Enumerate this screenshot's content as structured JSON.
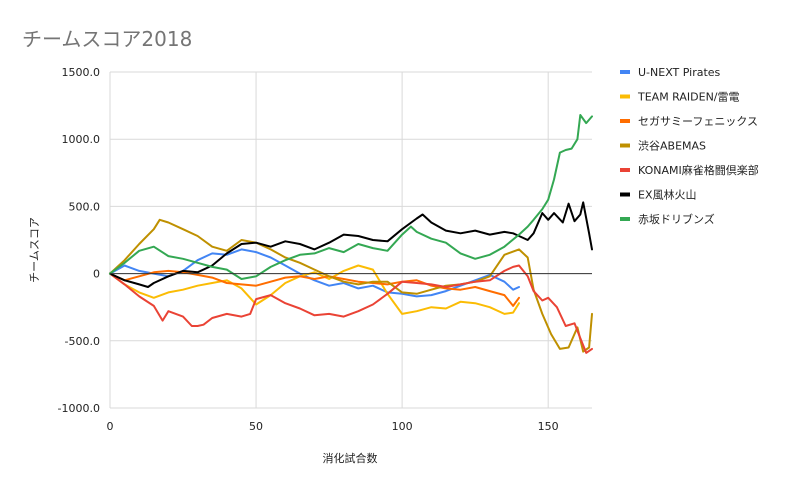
{
  "chart_data": {
    "type": "line",
    "title": "チームスコア2018",
    "xlabel": "消化試合数",
    "ylabel": "チームスコア",
    "xlim": [
      0,
      165
    ],
    "ylim": [
      -1000,
      1500
    ],
    "x_ticks": [
      0,
      50,
      100,
      150
    ],
    "x_tick_labels": [
      "0",
      "50",
      "100",
      "150"
    ],
    "y_ticks": [
      -1000,
      -500,
      0,
      500,
      1000,
      1500
    ],
    "y_tick_labels": [
      "-1000.0",
      "-500.0",
      "0",
      "500.0",
      "1000.0",
      "1500.0"
    ],
    "grid": true,
    "legend_position": "right",
    "series": [
      {
        "name": "U-NEXT Pirates",
        "color": "#4285f4",
        "points": [
          [
            0,
            0
          ],
          [
            5,
            60
          ],
          [
            10,
            20
          ],
          [
            15,
            0
          ],
          [
            20,
            -20
          ],
          [
            25,
            20
          ],
          [
            30,
            100
          ],
          [
            35,
            150
          ],
          [
            40,
            140
          ],
          [
            45,
            180
          ],
          [
            50,
            160
          ],
          [
            55,
            120
          ],
          [
            60,
            60
          ],
          [
            65,
            0
          ],
          [
            70,
            -50
          ],
          [
            75,
            -90
          ],
          [
            80,
            -70
          ],
          [
            85,
            -110
          ],
          [
            90,
            -90
          ],
          [
            95,
            -140
          ],
          [
            100,
            -150
          ],
          [
            105,
            -170
          ],
          [
            110,
            -160
          ],
          [
            115,
            -130
          ],
          [
            120,
            -90
          ],
          [
            125,
            -50
          ],
          [
            130,
            -10
          ],
          [
            135,
            -60
          ],
          [
            138,
            -120
          ],
          [
            140,
            -100
          ]
        ]
      },
      {
        "name": "TEAM RAIDEN/雷電",
        "color": "#fbbc04",
        "points": [
          [
            0,
            0
          ],
          [
            5,
            -80
          ],
          [
            10,
            -140
          ],
          [
            15,
            -180
          ],
          [
            20,
            -140
          ],
          [
            25,
            -120
          ],
          [
            30,
            -90
          ],
          [
            35,
            -70
          ],
          [
            40,
            -50
          ],
          [
            45,
            -110
          ],
          [
            50,
            -230
          ],
          [
            55,
            -160
          ],
          [
            60,
            -70
          ],
          [
            65,
            -20
          ],
          [
            70,
            10
          ],
          [
            75,
            -40
          ],
          [
            80,
            20
          ],
          [
            85,
            60
          ],
          [
            90,
            30
          ],
          [
            95,
            -150
          ],
          [
            100,
            -300
          ],
          [
            105,
            -280
          ],
          [
            110,
            -250
          ],
          [
            115,
            -260
          ],
          [
            120,
            -210
          ],
          [
            125,
            -220
          ],
          [
            130,
            -250
          ],
          [
            135,
            -300
          ],
          [
            138,
            -290
          ],
          [
            140,
            -220
          ]
        ]
      },
      {
        "name": "セガサミーフェニックス",
        "color": "#ff6d00",
        "points": [
          [
            0,
            0
          ],
          [
            5,
            -50
          ],
          [
            10,
            -20
          ],
          [
            15,
            10
          ],
          [
            20,
            20
          ],
          [
            25,
            10
          ],
          [
            30,
            -10
          ],
          [
            35,
            -30
          ],
          [
            40,
            -70
          ],
          [
            45,
            -80
          ],
          [
            50,
            -90
          ],
          [
            55,
            -60
          ],
          [
            60,
            -30
          ],
          [
            65,
            -20
          ],
          [
            70,
            -40
          ],
          [
            75,
            -20
          ],
          [
            80,
            -40
          ],
          [
            85,
            -60
          ],
          [
            90,
            -70
          ],
          [
            95,
            -80
          ],
          [
            100,
            -60
          ],
          [
            105,
            -50
          ],
          [
            110,
            -90
          ],
          [
            115,
            -110
          ],
          [
            120,
            -120
          ],
          [
            125,
            -100
          ],
          [
            130,
            -130
          ],
          [
            135,
            -160
          ],
          [
            138,
            -240
          ],
          [
            140,
            -180
          ]
        ]
      },
      {
        "name": "渋谷ABEMAS",
        "color": "#bf9000",
        "points": [
          [
            0,
            0
          ],
          [
            5,
            100
          ],
          [
            10,
            220
          ],
          [
            15,
            330
          ],
          [
            17,
            400
          ],
          [
            20,
            380
          ],
          [
            25,
            330
          ],
          [
            30,
            280
          ],
          [
            35,
            200
          ],
          [
            40,
            170
          ],
          [
            45,
            250
          ],
          [
            50,
            230
          ],
          [
            55,
            180
          ],
          [
            60,
            120
          ],
          [
            65,
            80
          ],
          [
            70,
            30
          ],
          [
            75,
            -20
          ],
          [
            80,
            -60
          ],
          [
            85,
            -80
          ],
          [
            90,
            -60
          ],
          [
            95,
            -60
          ],
          [
            100,
            -140
          ],
          [
            105,
            -150
          ],
          [
            110,
            -120
          ],
          [
            115,
            -90
          ],
          [
            120,
            -80
          ],
          [
            125,
            -60
          ],
          [
            130,
            -20
          ],
          [
            135,
            140
          ],
          [
            140,
            180
          ],
          [
            143,
            120
          ],
          [
            145,
            -120
          ],
          [
            148,
            -300
          ],
          [
            151,
            -450
          ],
          [
            154,
            -560
          ],
          [
            157,
            -550
          ],
          [
            160,
            -400
          ],
          [
            162,
            -580
          ],
          [
            164,
            -550
          ],
          [
            165,
            -300
          ]
        ]
      },
      {
        "name": "KONAMI麻雀格闘倶楽部",
        "color": "#ea4335",
        "points": [
          [
            0,
            0
          ],
          [
            5,
            -80
          ],
          [
            10,
            -170
          ],
          [
            15,
            -240
          ],
          [
            18,
            -350
          ],
          [
            20,
            -280
          ],
          [
            25,
            -320
          ],
          [
            28,
            -390
          ],
          [
            30,
            -390
          ],
          [
            32,
            -380
          ],
          [
            35,
            -330
          ],
          [
            40,
            -300
          ],
          [
            45,
            -320
          ],
          [
            48,
            -300
          ],
          [
            50,
            -190
          ],
          [
            55,
            -160
          ],
          [
            60,
            -220
          ],
          [
            65,
            -260
          ],
          [
            70,
            -310
          ],
          [
            75,
            -300
          ],
          [
            80,
            -320
          ],
          [
            85,
            -280
          ],
          [
            90,
            -230
          ],
          [
            95,
            -150
          ],
          [
            100,
            -60
          ],
          [
            105,
            -70
          ],
          [
            110,
            -80
          ],
          [
            115,
            -100
          ],
          [
            120,
            -80
          ],
          [
            125,
            -60
          ],
          [
            130,
            -50
          ],
          [
            135,
            20
          ],
          [
            138,
            50
          ],
          [
            140,
            60
          ],
          [
            143,
            -20
          ],
          [
            145,
            -130
          ],
          [
            148,
            -200
          ],
          [
            150,
            -180
          ],
          [
            153,
            -250
          ],
          [
            156,
            -390
          ],
          [
            159,
            -370
          ],
          [
            161,
            -480
          ],
          [
            163,
            -590
          ],
          [
            165,
            -560
          ]
        ]
      },
      {
        "name": "EX風林火山",
        "color": "#000000",
        "points": [
          [
            0,
            0
          ],
          [
            5,
            -50
          ],
          [
            10,
            -80
          ],
          [
            13,
            -100
          ],
          [
            15,
            -70
          ],
          [
            20,
            -20
          ],
          [
            25,
            20
          ],
          [
            30,
            10
          ],
          [
            35,
            60
          ],
          [
            40,
            150
          ],
          [
            45,
            220
          ],
          [
            50,
            230
          ],
          [
            55,
            200
          ],
          [
            60,
            240
          ],
          [
            65,
            220
          ],
          [
            70,
            180
          ],
          [
            75,
            230
          ],
          [
            80,
            290
          ],
          [
            85,
            280
          ],
          [
            90,
            250
          ],
          [
            95,
            240
          ],
          [
            100,
            330
          ],
          [
            105,
            410
          ],
          [
            107,
            440
          ],
          [
            110,
            380
          ],
          [
            115,
            320
          ],
          [
            120,
            300
          ],
          [
            125,
            320
          ],
          [
            130,
            290
          ],
          [
            135,
            310
          ],
          [
            138,
            300
          ],
          [
            140,
            280
          ],
          [
            143,
            250
          ],
          [
            145,
            300
          ],
          [
            148,
            450
          ],
          [
            150,
            400
          ],
          [
            152,
            450
          ],
          [
            155,
            380
          ],
          [
            157,
            520
          ],
          [
            159,
            390
          ],
          [
            161,
            440
          ],
          [
            162,
            530
          ],
          [
            164,
            300
          ],
          [
            165,
            180
          ]
        ]
      },
      {
        "name": "赤坂ドリブンズ",
        "color": "#34a853",
        "points": [
          [
            0,
            0
          ],
          [
            5,
            80
          ],
          [
            10,
            170
          ],
          [
            15,
            200
          ],
          [
            20,
            130
          ],
          [
            25,
            110
          ],
          [
            30,
            80
          ],
          [
            35,
            50
          ],
          [
            40,
            30
          ],
          [
            45,
            -40
          ],
          [
            50,
            -20
          ],
          [
            55,
            50
          ],
          [
            60,
            100
          ],
          [
            65,
            140
          ],
          [
            70,
            150
          ],
          [
            75,
            190
          ],
          [
            80,
            160
          ],
          [
            85,
            220
          ],
          [
            90,
            190
          ],
          [
            95,
            170
          ],
          [
            100,
            290
          ],
          [
            103,
            350
          ],
          [
            105,
            310
          ],
          [
            110,
            260
          ],
          [
            115,
            230
          ],
          [
            120,
            150
          ],
          [
            125,
            110
          ],
          [
            130,
            140
          ],
          [
            135,
            200
          ],
          [
            140,
            290
          ],
          [
            143,
            350
          ],
          [
            145,
            400
          ],
          [
            148,
            480
          ],
          [
            150,
            550
          ],
          [
            152,
            700
          ],
          [
            154,
            900
          ],
          [
            156,
            920
          ],
          [
            158,
            930
          ],
          [
            160,
            1000
          ],
          [
            161,
            1180
          ],
          [
            163,
            1120
          ],
          [
            165,
            1170
          ]
        ]
      }
    ]
  }
}
